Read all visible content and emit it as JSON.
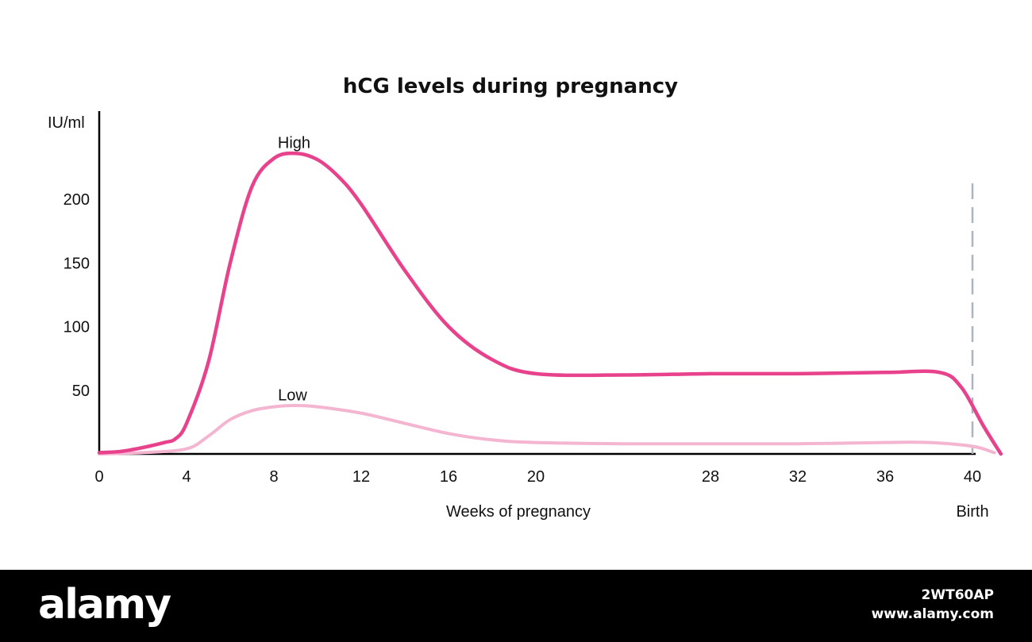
{
  "chart_data": {
    "type": "line",
    "title": "hCG levels during pregnancy",
    "ylabel": "IU/ml",
    "xlabel": "Weeks of pregnancy",
    "xlim": [
      0,
      44
    ],
    "ylim": [
      0,
      250
    ],
    "x_ticks": [
      0,
      4,
      8,
      12,
      16,
      20,
      28,
      32,
      36,
      40
    ],
    "y_ticks": [
      50,
      100,
      150,
      200
    ],
    "grid": false,
    "series": [
      {
        "name": "High",
        "color": "#e8428c",
        "points": [
          {
            "x": 0,
            "y": 1
          },
          {
            "x": 1,
            "y": 2
          },
          {
            "x": 2,
            "y": 5
          },
          {
            "x": 3,
            "y": 9
          },
          {
            "x": 3.5,
            "y": 12
          },
          {
            "x": 4,
            "y": 24
          },
          {
            "x": 5,
            "y": 72
          },
          {
            "x": 6,
            "y": 150
          },
          {
            "x": 7,
            "y": 210
          },
          {
            "x": 8,
            "y": 232
          },
          {
            "x": 9,
            "y": 236
          },
          {
            "x": 10,
            "y": 231
          },
          {
            "x": 11,
            "y": 217
          },
          {
            "x": 12,
            "y": 196
          },
          {
            "x": 14,
            "y": 144
          },
          {
            "x": 16,
            "y": 100
          },
          {
            "x": 18,
            "y": 74
          },
          {
            "x": 20,
            "y": 63
          },
          {
            "x": 24,
            "y": 62
          },
          {
            "x": 28,
            "y": 63
          },
          {
            "x": 32,
            "y": 63
          },
          {
            "x": 36,
            "y": 64
          },
          {
            "x": 38.5,
            "y": 64
          },
          {
            "x": 39.5,
            "y": 52
          },
          {
            "x": 40.5,
            "y": 22
          },
          {
            "x": 41.3,
            "y": 0
          }
        ]
      },
      {
        "name": "Low",
        "color": "#f4b5d1",
        "points": [
          {
            "x": 0,
            "y": 0
          },
          {
            "x": 2,
            "y": 1
          },
          {
            "x": 4,
            "y": 4
          },
          {
            "x": 5,
            "y": 14
          },
          {
            "x": 6,
            "y": 27
          },
          {
            "x": 7,
            "y": 34
          },
          {
            "x": 8,
            "y": 37
          },
          {
            "x": 9,
            "y": 38
          },
          {
            "x": 10,
            "y": 37
          },
          {
            "x": 12,
            "y": 32
          },
          {
            "x": 14,
            "y": 24
          },
          {
            "x": 16,
            "y": 16
          },
          {
            "x": 18,
            "y": 11
          },
          {
            "x": 20,
            "y": 9
          },
          {
            "x": 24,
            "y": 8
          },
          {
            "x": 28,
            "y": 8
          },
          {
            "x": 32,
            "y": 8
          },
          {
            "x": 36,
            "y": 9
          },
          {
            "x": 38,
            "y": 9
          },
          {
            "x": 40,
            "y": 6
          },
          {
            "x": 41,
            "y": 1
          }
        ]
      }
    ],
    "annotations": [
      {
        "text": "High",
        "x": 9,
        "y": 242
      },
      {
        "text": "Low",
        "x": 9,
        "y": 44
      },
      {
        "text": "Birth",
        "x": 40,
        "type": "vertical-dashed-line",
        "color": "#aeb3c2"
      }
    ]
  },
  "footer": {
    "brand": "alamy",
    "image_id": "2WT60AP",
    "site": "www.alamy.com"
  }
}
